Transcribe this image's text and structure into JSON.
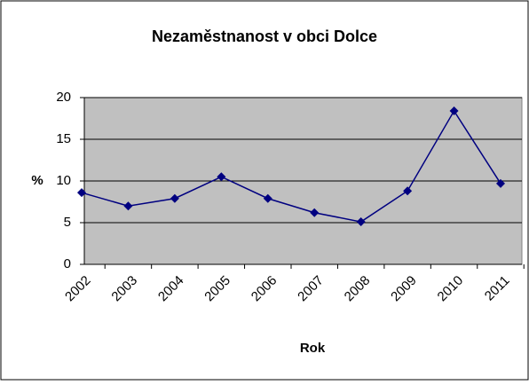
{
  "chart_data": {
    "type": "line",
    "title": "Nezaměstnanost v obci Dolce",
    "x_label": "Rok",
    "y_label": "%",
    "categories": [
      "2002",
      "2003",
      "2004",
      "2005",
      "2006",
      "2007",
      "2008",
      "2009",
      "2010",
      "2011"
    ],
    "series": [
      {
        "name": "Nezaměstnanost",
        "color": "#000080",
        "values": [
          8.6,
          7.0,
          7.9,
          10.5,
          7.9,
          6.2,
          5.1,
          8.8,
          18.4,
          9.7
        ]
      }
    ],
    "ylim": [
      0,
      20
    ],
    "yticks": [
      0,
      5,
      10,
      15,
      20
    ],
    "grid": true
  }
}
